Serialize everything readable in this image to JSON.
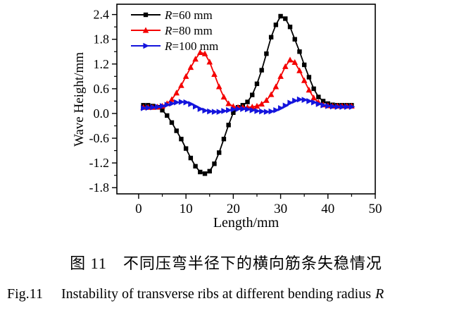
{
  "chart_data": {
    "type": "line",
    "title": "",
    "xlabel": "Length/mm",
    "ylabel": "Wave Height/mm",
    "xlim": [
      -4.6,
      50
    ],
    "ylim": [
      -1.95,
      2.65
    ],
    "grid": false,
    "legend_position": "top-left-inside",
    "xticks_major": [
      {
        "v": 0,
        "label": "0"
      },
      {
        "v": 10,
        "label": "10"
      },
      {
        "v": 20,
        "label": "20"
      },
      {
        "v": 30,
        "label": "30"
      },
      {
        "v": 40,
        "label": "40"
      },
      {
        "v": 50,
        "label": "50"
      }
    ],
    "xticks_minor": [
      5,
      15,
      25,
      35,
      45
    ],
    "yticks_major": [
      {
        "v": -1.8,
        "label": "-1.8"
      },
      {
        "v": -1.2,
        "label": "-1.2"
      },
      {
        "v": -0.6,
        "label": "-0.6"
      },
      {
        "v": 0.0,
        "label": "0.0"
      },
      {
        "v": 0.6,
        "label": "0.6"
      },
      {
        "v": 1.2,
        "label": "1.2"
      },
      {
        "v": 1.8,
        "label": "1.8"
      },
      {
        "v": 2.4,
        "label": "2.4"
      }
    ],
    "yticks_minor": [
      -1.5,
      -0.9,
      -0.3,
      0.3,
      0.9,
      1.5,
      2.1
    ],
    "x": [
      1,
      2,
      3,
      4,
      5,
      6,
      7,
      8,
      9,
      10,
      11,
      12,
      13,
      14,
      15,
      16,
      17,
      18,
      19,
      20,
      21,
      22,
      23,
      24,
      25,
      26,
      27,
      28,
      29,
      30,
      31,
      32,
      33,
      34,
      35,
      36,
      37,
      38,
      39,
      40,
      41,
      42,
      43,
      44,
      45
    ],
    "series": [
      {
        "id": "r60",
        "label_italic": "R",
        "label_rest": "=60 mm",
        "color": "#000000",
        "marker": "square",
        "values": [
          0.2,
          0.2,
          0.18,
          0.15,
          0.08,
          -0.05,
          -0.22,
          -0.42,
          -0.62,
          -0.85,
          -1.08,
          -1.28,
          -1.42,
          -1.46,
          -1.4,
          -1.22,
          -0.95,
          -0.62,
          -0.28,
          0.02,
          0.15,
          0.2,
          0.28,
          0.45,
          0.72,
          1.05,
          1.45,
          1.85,
          2.15,
          2.36,
          2.3,
          2.1,
          1.8,
          1.5,
          1.18,
          0.88,
          0.6,
          0.4,
          0.3,
          0.24,
          0.21,
          0.2,
          0.2,
          0.2,
          0.2
        ]
      },
      {
        "id": "r80",
        "label_italic": "R",
        "label_rest": "=80 mm",
        "color": "#f40000",
        "marker": "triangle-up",
        "values": [
          0.15,
          0.15,
          0.15,
          0.16,
          0.18,
          0.24,
          0.34,
          0.5,
          0.68,
          0.9,
          1.12,
          1.32,
          1.48,
          1.45,
          1.25,
          0.95,
          0.65,
          0.4,
          0.24,
          0.17,
          0.15,
          0.15,
          0.15,
          0.16,
          0.18,
          0.23,
          0.32,
          0.46,
          0.65,
          0.9,
          1.14,
          1.3,
          1.24,
          1.04,
          0.8,
          0.57,
          0.38,
          0.27,
          0.21,
          0.19,
          0.18,
          0.18,
          0.18,
          0.18,
          0.18
        ]
      },
      {
        "id": "r100",
        "label_italic": "R",
        "label_rest": "=100 mm",
        "color": "#1414dd",
        "marker": "triangle-right",
        "values": [
          0.13,
          0.14,
          0.15,
          0.16,
          0.18,
          0.21,
          0.24,
          0.27,
          0.28,
          0.27,
          0.23,
          0.17,
          0.11,
          0.07,
          0.05,
          0.04,
          0.04,
          0.06,
          0.08,
          0.1,
          0.11,
          0.11,
          0.1,
          0.08,
          0.06,
          0.05,
          0.04,
          0.05,
          0.08,
          0.13,
          0.19,
          0.26,
          0.31,
          0.34,
          0.33,
          0.3,
          0.27,
          0.23,
          0.2,
          0.18,
          0.17,
          0.16,
          0.16,
          0.16,
          0.16
        ]
      }
    ]
  },
  "captions": {
    "cn": "图 11　不同压弯半径下的横向筋条失稳情况",
    "en_label": "Fig.11",
    "en_text": "Instability of transverse ribs at different bending radius",
    "en_italic": "R"
  }
}
